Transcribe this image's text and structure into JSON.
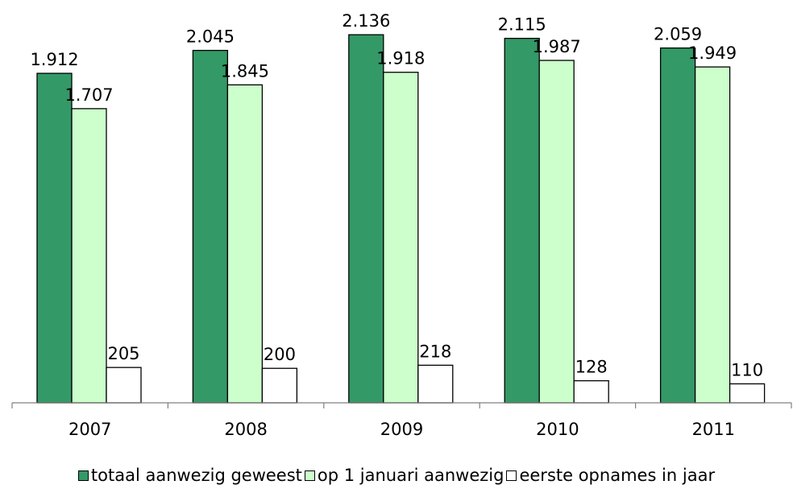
{
  "chart_data": {
    "type": "bar",
    "title": "",
    "xlabel": "",
    "ylabel": "",
    "categories": [
      "2007",
      "2008",
      "2009",
      "2010",
      "2011"
    ],
    "series": [
      {
        "name": "totaal aanwezig geweest",
        "values": [
          1912,
          2045,
          2136,
          2115,
          2059
        ],
        "labels": [
          "1.912",
          "2.045",
          "2.136",
          "2.115",
          "2.059"
        ],
        "color": "#339966"
      },
      {
        "name": "op 1 januari aanwezig",
        "values": [
          1707,
          1845,
          1918,
          1987,
          1949
        ],
        "labels": [
          "1.707",
          "1.845",
          "1.918",
          "1.987",
          "1.949"
        ],
        "color": "#CCFFCC"
      },
      {
        "name": "eerste opnames in jaar",
        "values": [
          205,
          200,
          218,
          128,
          110
        ],
        "labels": [
          "205",
          "200",
          "218",
          "128",
          "110"
        ],
        "color": "#FFFFFF"
      }
    ],
    "ylim": [
      0,
      2200
    ],
    "grid": false,
    "legend_position": "bottom"
  }
}
